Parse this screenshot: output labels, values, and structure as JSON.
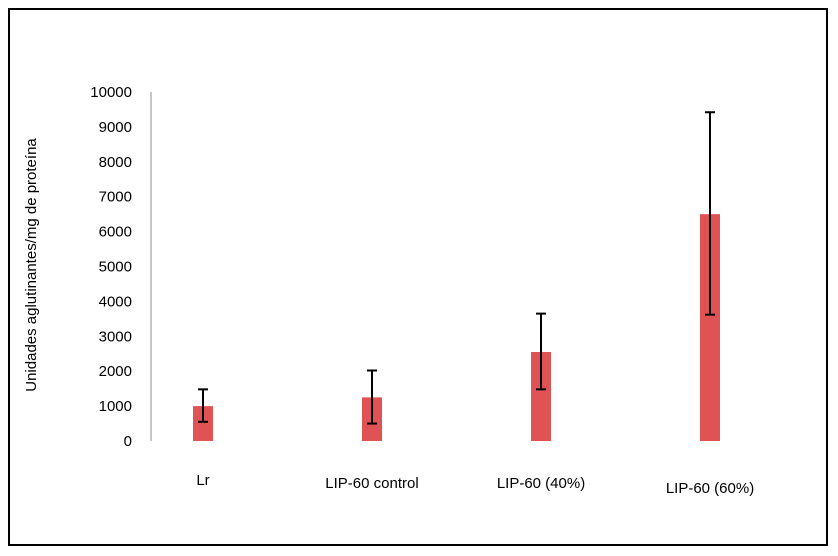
{
  "chart_data": {
    "type": "bar",
    "title": "",
    "xlabel": "",
    "ylabel": "Unidades aglutinantes/mg de proteína",
    "ylim": [
      0,
      10000
    ],
    "yticks": [
      0,
      1000,
      2000,
      3000,
      4000,
      5000,
      6000,
      7000,
      8000,
      9000,
      10000
    ],
    "categories": [
      "Lr",
      "LIP-60 control",
      "LIP-60 (40%)",
      "LIP-60 (60%)"
    ],
    "values": [
      1000,
      1250,
      2550,
      6500
    ],
    "error_low": [
      550,
      500,
      1480,
      3620
    ],
    "error_high": [
      1480,
      2020,
      3650,
      9420
    ],
    "grid": false,
    "legend": "none",
    "colors": {
      "bar": "#e05355",
      "axis": "#8c8c8c",
      "error_bar": "#000000",
      "frame": "#000000"
    }
  }
}
